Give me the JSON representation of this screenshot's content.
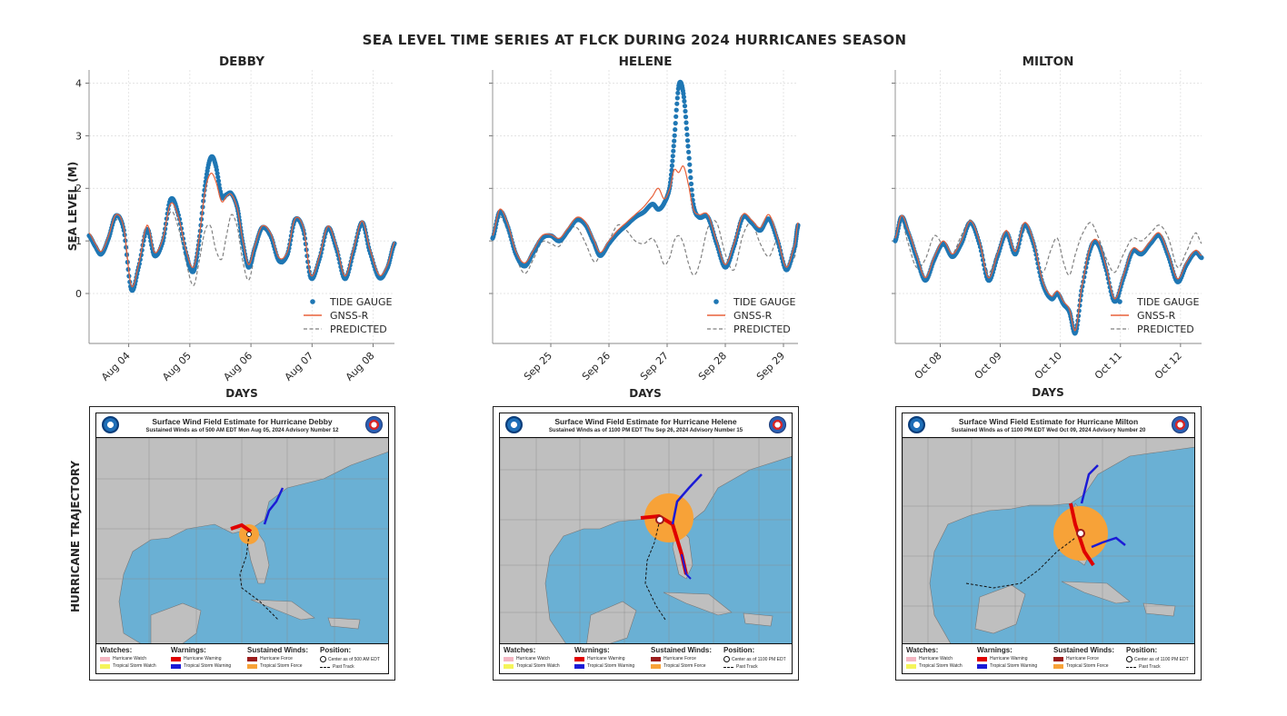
{
  "title": "SEA LEVEL TIME SERIES AT FLCK DURING 2024 HURRICANES SEASON",
  "ylabel": "SEA LEVEL (M)",
  "xlabel": "DAYS",
  "row_label": "HURRICANE TRAJECTORY",
  "legend": [
    "TIDE GAUGE",
    "GNSS-R",
    "PREDICTED"
  ],
  "colors": {
    "tide_gauge": "#1f77b4",
    "gnss_r": "#e8613a",
    "predicted": "#808080"
  },
  "chart_data": [
    {
      "type": "line",
      "title": "DEBBY",
      "ylim": [
        -0.95,
        4.25
      ],
      "yticks": [
        0,
        1,
        2,
        3,
        4
      ],
      "xlim": [
        3.35,
        8.35
      ],
      "xtick_positions": [
        4,
        5,
        6,
        7,
        8
      ],
      "xticks": [
        "Aug 04",
        "Aug 05",
        "Aug 06",
        "Aug 07",
        "Aug 08"
      ],
      "grid": true,
      "legend_position": "lower right",
      "series": [
        {
          "name": "TIDE GAUGE",
          "style": "dots",
          "x": [
            3.35,
            3.45,
            3.55,
            3.67,
            3.79,
            3.92,
            4.04,
            4.16,
            4.3,
            4.42,
            4.56,
            4.68,
            4.8,
            4.95,
            5.06,
            5.15,
            5.25,
            5.34,
            5.42,
            5.52,
            5.6,
            5.68,
            5.78,
            5.86,
            5.96,
            6.06,
            6.18,
            6.32,
            6.46,
            6.6,
            6.72,
            6.86,
            6.98,
            7.12,
            7.26,
            7.4,
            7.54,
            7.68,
            7.82,
            7.94,
            8.1,
            8.24,
            8.35
          ],
          "y": [
            1.1,
            0.9,
            0.75,
            1.05,
            1.48,
            1.2,
            0.08,
            0.5,
            1.22,
            0.72,
            1.0,
            1.78,
            1.55,
            0.72,
            0.42,
            1.0,
            2.05,
            2.58,
            2.45,
            1.85,
            1.88,
            1.9,
            1.62,
            1.0,
            0.5,
            0.85,
            1.25,
            1.1,
            0.62,
            0.75,
            1.4,
            1.2,
            0.3,
            0.65,
            1.25,
            0.85,
            0.28,
            0.8,
            1.35,
            0.82,
            0.3,
            0.5,
            0.95
          ]
        },
        {
          "name": "GNSS-R",
          "style": "line",
          "x": [
            3.35,
            3.45,
            3.55,
            3.67,
            3.79,
            3.92,
            4.04,
            4.16,
            4.3,
            4.42,
            4.56,
            4.68,
            4.8,
            4.95,
            5.06,
            5.15,
            5.25,
            5.34,
            5.42,
            5.52,
            5.6,
            5.68,
            5.78,
            5.86,
            5.96,
            6.06,
            6.18,
            6.32,
            6.46,
            6.6,
            6.72,
            6.86,
            6.98,
            7.12,
            7.26,
            7.4,
            7.54,
            7.68,
            7.82,
            7.94,
            8.1,
            8.24,
            8.35
          ],
          "y": [
            1.15,
            0.95,
            0.8,
            1.1,
            1.5,
            1.25,
            0.15,
            0.55,
            1.3,
            0.78,
            1.05,
            1.7,
            1.5,
            0.78,
            0.5,
            1.05,
            1.95,
            2.28,
            2.15,
            1.75,
            1.85,
            1.88,
            1.6,
            1.05,
            0.55,
            0.9,
            1.28,
            1.15,
            0.68,
            0.8,
            1.42,
            1.25,
            0.35,
            0.7,
            1.28,
            0.9,
            0.33,
            0.85,
            1.38,
            0.87,
            0.35,
            0.55,
            0.98
          ]
        },
        {
          "name": "PREDICTED",
          "style": "dashed",
          "x": [
            3.35,
            3.45,
            3.55,
            3.67,
            3.79,
            3.92,
            4.04,
            4.16,
            4.3,
            4.42,
            4.56,
            4.68,
            4.8,
            4.95,
            5.06,
            5.15,
            5.25,
            5.34,
            5.42,
            5.52,
            5.6,
            5.68,
            5.78,
            5.86,
            5.96,
            6.06,
            6.18,
            6.32,
            6.46,
            6.6,
            6.72,
            6.86,
            6.98,
            7.12,
            7.26,
            7.4,
            7.54,
            7.68,
            7.82,
            7.94,
            8.1,
            8.24,
            8.35
          ],
          "y": [
            1.05,
            0.85,
            0.72,
            1.0,
            1.4,
            1.15,
            0.12,
            0.45,
            1.15,
            0.68,
            0.95,
            1.55,
            1.3,
            0.55,
            0.15,
            0.6,
            1.2,
            1.28,
            0.85,
            0.65,
            1.1,
            1.5,
            1.25,
            0.65,
            0.25,
            0.72,
            1.2,
            1.05,
            0.58,
            0.7,
            1.35,
            1.15,
            0.3,
            0.6,
            1.2,
            0.82,
            0.28,
            0.75,
            1.3,
            0.8,
            0.3,
            0.45,
            0.92
          ]
        }
      ]
    },
    {
      "type": "line",
      "title": "HELENE",
      "ylim": [
        -0.95,
        4.25
      ],
      "yticks": [
        0,
        1,
        2,
        3,
        4
      ],
      "xlim": [
        24.0,
        29.25
      ],
      "xtick_positions": [
        25,
        26,
        27,
        28,
        29
      ],
      "xticks": [
        "Sep 25",
        "Sep 26",
        "Sep 27",
        "Sep 28",
        "Sep 29"
      ],
      "grid": true,
      "legend_position": "lower right",
      "series": [
        {
          "name": "TIDE GAUGE",
          "style": "dots",
          "x": [
            24.0,
            24.12,
            24.25,
            24.4,
            24.55,
            24.7,
            24.85,
            25.0,
            25.15,
            25.3,
            25.45,
            25.6,
            25.75,
            25.85,
            26.0,
            26.15,
            26.3,
            26.45,
            26.6,
            26.75,
            26.85,
            26.95,
            27.05,
            27.12,
            27.2,
            27.28,
            27.36,
            27.45,
            27.55,
            27.7,
            27.85,
            28.0,
            28.15,
            28.3,
            28.45,
            28.6,
            28.75,
            28.9,
            29.05,
            29.2,
            29.25
          ],
          "y": [
            1.05,
            1.55,
            1.3,
            0.75,
            0.52,
            0.78,
            1.05,
            1.1,
            1.0,
            1.2,
            1.4,
            1.3,
            0.95,
            0.72,
            0.95,
            1.15,
            1.3,
            1.45,
            1.55,
            1.7,
            1.6,
            1.72,
            2.05,
            2.9,
            3.95,
            3.8,
            2.8,
            1.7,
            1.45,
            1.45,
            0.95,
            0.5,
            0.9,
            1.45,
            1.35,
            1.2,
            1.42,
            1.0,
            0.45,
            0.9,
            1.3
          ]
        },
        {
          "name": "GNSS-R",
          "style": "line",
          "x": [
            24.0,
            24.12,
            24.25,
            24.4,
            24.55,
            24.7,
            24.85,
            25.0,
            25.15,
            25.3,
            25.45,
            25.6,
            25.75,
            25.85,
            26.0,
            26.15,
            26.3,
            26.45,
            26.6,
            26.75,
            26.85,
            26.95,
            27.05,
            27.12,
            27.2,
            27.28,
            27.36,
            27.45,
            27.55,
            27.7,
            27.85,
            28.0,
            28.15,
            28.3,
            28.45,
            28.6,
            28.75,
            28.9,
            29.05,
            29.2,
            29.25
          ],
          "y": [
            1.1,
            1.6,
            1.35,
            0.8,
            0.58,
            0.82,
            1.1,
            1.12,
            1.05,
            1.25,
            1.45,
            1.35,
            1.0,
            0.78,
            1.0,
            1.2,
            1.35,
            1.5,
            1.65,
            1.85,
            2.0,
            1.8,
            2.0,
            2.35,
            2.3,
            2.42,
            2.1,
            1.6,
            1.5,
            1.5,
            1.0,
            0.55,
            0.95,
            1.5,
            1.4,
            1.25,
            1.5,
            1.05,
            0.5,
            0.95,
            1.35
          ]
        },
        {
          "name": "PREDICTED",
          "style": "dashed",
          "x": [
            24.0,
            24.12,
            24.25,
            24.4,
            24.55,
            24.7,
            24.85,
            25.0,
            25.15,
            25.3,
            25.45,
            25.6,
            25.75,
            25.85,
            26.0,
            26.15,
            26.3,
            26.45,
            26.6,
            26.75,
            26.85,
            26.95,
            27.05,
            27.12,
            27.2,
            27.28,
            27.36,
            27.45,
            27.55,
            27.7,
            27.85,
            28.0,
            28.15,
            28.3,
            28.45,
            28.6,
            28.75,
            28.9,
            29.05,
            29.2,
            29.25
          ],
          "y": [
            1.0,
            1.45,
            1.2,
            0.7,
            0.38,
            0.65,
            0.98,
            0.95,
            0.9,
            1.2,
            1.25,
            0.95,
            0.6,
            0.75,
            1.0,
            1.3,
            1.2,
            1.0,
            0.95,
            1.05,
            0.85,
            0.55,
            0.7,
            1.0,
            1.1,
            0.95,
            0.6,
            0.35,
            0.55,
            1.25,
            1.35,
            0.75,
            0.45,
            1.1,
            1.35,
            0.95,
            0.7,
            1.0,
            0.5,
            0.72,
            1.25
          ]
        }
      ]
    },
    {
      "type": "line",
      "title": "MILTON",
      "ylim": [
        -0.95,
        4.25
      ],
      "yticks": [
        0,
        1,
        2,
        3,
        4
      ],
      "xlim": [
        7.25,
        12.35
      ],
      "xtick_positions": [
        8,
        9,
        10,
        11,
        12
      ],
      "xticks": [
        "Oct 08",
        "Oct 09",
        "Oct 10",
        "Oct 11",
        "Oct 12"
      ],
      "grid": true,
      "legend_position": "lower right",
      "series": [
        {
          "name": "TIDE GAUGE",
          "style": "dots",
          "x": [
            7.25,
            7.35,
            7.45,
            7.6,
            7.75,
            7.9,
            8.05,
            8.2,
            8.35,
            8.5,
            8.65,
            8.8,
            8.95,
            9.1,
            9.25,
            9.4,
            9.55,
            9.7,
            9.85,
            9.95,
            10.05,
            10.15,
            10.25,
            10.35,
            10.5,
            10.62,
            10.75,
            10.9,
            11.05,
            11.2,
            11.35,
            11.5,
            11.65,
            11.8,
            11.95,
            12.1,
            12.25,
            12.35
          ],
          "y": [
            1.0,
            1.45,
            1.2,
            0.7,
            0.25,
            0.65,
            0.95,
            0.7,
            0.95,
            1.35,
            0.95,
            0.25,
            0.7,
            1.15,
            0.75,
            1.3,
            0.95,
            0.2,
            -0.1,
            0.0,
            -0.2,
            -0.35,
            -0.75,
            0.05,
            0.85,
            0.95,
            0.5,
            -0.15,
            0.3,
            0.8,
            0.75,
            0.95,
            1.1,
            0.7,
            0.22,
            0.55,
            0.78,
            0.68
          ]
        },
        {
          "name": "GNSS-R",
          "style": "line",
          "x": [
            7.25,
            7.35,
            7.45,
            7.6,
            7.75,
            7.9,
            8.05,
            8.2,
            8.35,
            8.5,
            8.65,
            8.8,
            8.95,
            9.1,
            9.25,
            9.4,
            9.55,
            9.7,
            9.85,
            9.95,
            10.05,
            10.15,
            10.25,
            10.35,
            10.5,
            10.62,
            10.75,
            10.9,
            11.05,
            11.2,
            11.35,
            11.5,
            11.65,
            11.8,
            11.95,
            12.1,
            12.25,
            12.35
          ],
          "y": [
            1.05,
            1.48,
            1.25,
            0.75,
            0.3,
            0.7,
            1.0,
            0.75,
            1.0,
            1.38,
            1.0,
            0.3,
            0.75,
            1.2,
            0.8,
            1.35,
            1.0,
            0.25,
            -0.05,
            0.05,
            -0.15,
            -0.3,
            -0.7,
            0.1,
            0.9,
            1.0,
            0.55,
            -0.1,
            0.35,
            0.85,
            0.8,
            1.0,
            1.15,
            0.75,
            0.28,
            0.6,
            0.82,
            0.72
          ]
        },
        {
          "name": "PREDICTED",
          "style": "dashed",
          "x": [
            7.25,
            7.35,
            7.45,
            7.6,
            7.75,
            7.9,
            8.05,
            8.2,
            8.35,
            8.5,
            8.65,
            8.8,
            8.95,
            9.1,
            9.25,
            9.4,
            9.55,
            9.7,
            9.85,
            9.95,
            10.05,
            10.15,
            10.25,
            10.35,
            10.5,
            10.62,
            10.75,
            10.9,
            11.05,
            11.2,
            11.35,
            11.5,
            11.65,
            11.8,
            11.95,
            12.1,
            12.25,
            12.35
          ],
          "y": [
            1.1,
            1.4,
            1.0,
            0.5,
            0.65,
            1.1,
            0.9,
            0.75,
            1.1,
            1.4,
            1.05,
            0.4,
            0.8,
            1.15,
            0.7,
            1.2,
            0.9,
            0.4,
            0.85,
            1.05,
            0.6,
            0.35,
            0.75,
            1.1,
            1.35,
            1.1,
            0.7,
            0.4,
            0.75,
            1.05,
            1.0,
            1.15,
            1.3,
            1.05,
            0.5,
            0.8,
            1.15,
            0.95
          ]
        }
      ]
    }
  ],
  "maps": [
    {
      "title": "Surface Wind Field Estimate for Hurricane Debby",
      "subtitle": "Sustained Winds as of 500 AM EDT Mon Aug 05, 2024     Advisory Number 12",
      "lat_labels": [
        "35N",
        "30N",
        "25N"
      ],
      "lon_labels": [
        "95W",
        "90W",
        "85W",
        "80W",
        "75W",
        "70W"
      ],
      "position_text": "Center as of 500 AM EDT"
    },
    {
      "title": "Surface Wind Field Estimate for Hurricane Helene",
      "subtitle": "Sustained Winds as of 1100 PM EDT Thu Sep 26, 2024     Advisory Number 15",
      "lat_labels": [
        "35N",
        "30N",
        "25N",
        "20N"
      ],
      "lon_labels": [
        "100W",
        "95W",
        "90W",
        "85W",
        "80W",
        "75W",
        "70W"
      ],
      "position_text": "Center as of 1100 PM EDT"
    },
    {
      "title": "Surface Wind Field Estimate for Hurricane Milton",
      "subtitle": "Sustained Winds as of 1100 PM EDT Wed Oct 09, 2024     Advisory Number 20",
      "lat_labels": [
        "30N",
        "25N",
        "20N"
      ],
      "lon_labels": [
        "100W",
        "95W",
        "90W",
        "85W",
        "80W",
        "75W"
      ],
      "position_text": "Center as of 1100 PM EDT"
    }
  ],
  "map_legend": {
    "watches": "Watches:",
    "warnings": "Warnings:",
    "winds": "Sustained Winds:",
    "position": "Position:",
    "hurricane_watch": "Hurricane Watch",
    "ts_watch": "Tropical Storm Watch",
    "hurricane_warning": "Hurricane Warning",
    "ts_warning": "Tropical Storm Warning",
    "hurricane_force": "Hurricane Force",
    "ts_force": "Tropical Storm Force",
    "past_track": "Past Track",
    "colors": {
      "hurricane_watch": "#f4b6c2",
      "ts_watch": "#f5f55a",
      "hurricane_warning": "#e00000",
      "ts_warning": "#1b1bd6",
      "hurricane_force": "#9b1c1c",
      "ts_force": "#f7a238"
    }
  }
}
